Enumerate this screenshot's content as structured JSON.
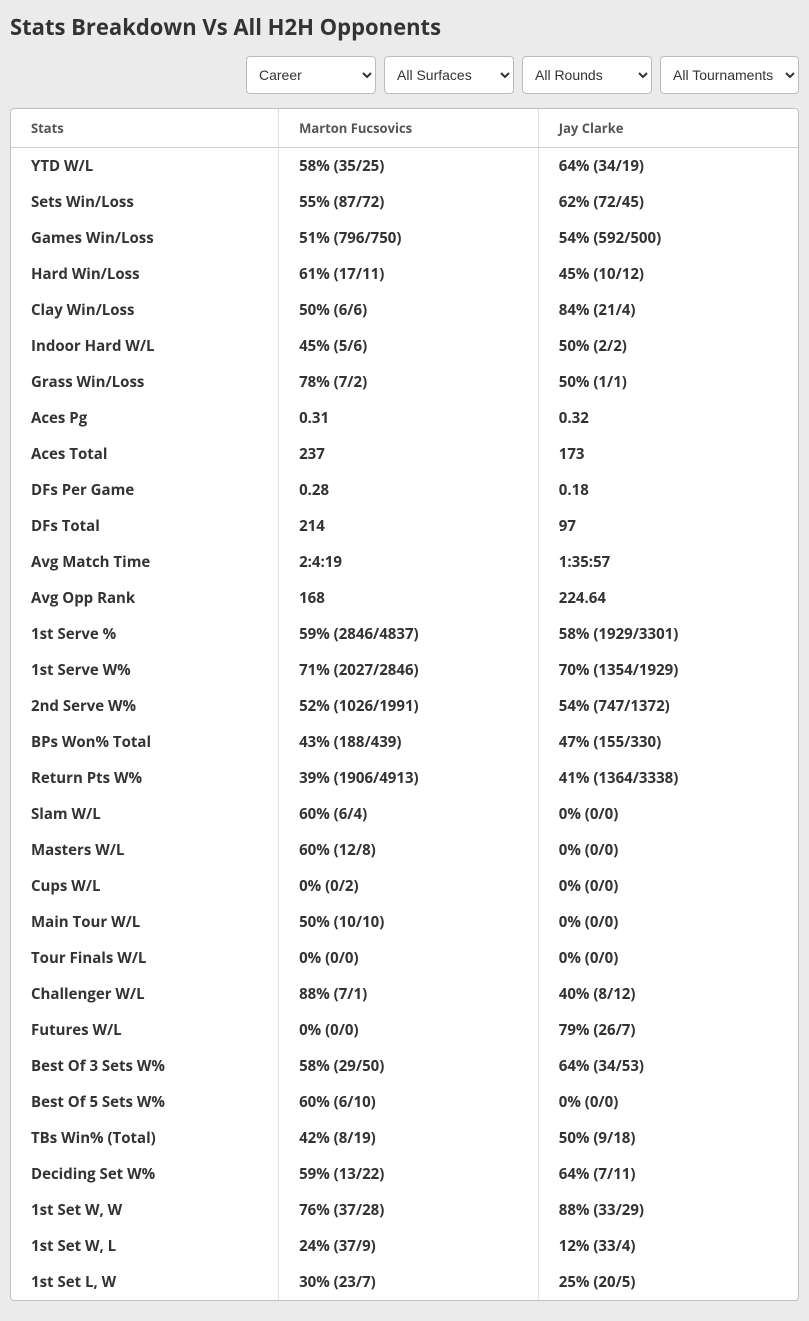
{
  "title": "Stats Breakdown Vs All H2H Opponents",
  "filters": {
    "period": {
      "selected": "Career",
      "options": [
        "Career"
      ]
    },
    "surface": {
      "selected": "All Surfaces",
      "options": [
        "All Surfaces"
      ]
    },
    "round": {
      "selected": "All Rounds",
      "options": [
        "All Rounds"
      ]
    },
    "tour": {
      "selected": "All Tournaments",
      "options": [
        "All Tournaments"
      ]
    }
  },
  "columns": {
    "stat": "Stats",
    "p1": "Marton Fucsovics",
    "p2": "Jay Clarke"
  },
  "rows": [
    {
      "stat": "YTD W/L",
      "p1": "58% (35/25)",
      "p2": "64% (34/19)"
    },
    {
      "stat": "Sets Win/Loss",
      "p1": "55% (87/72)",
      "p2": "62% (72/45)"
    },
    {
      "stat": "Games Win/Loss",
      "p1": "51% (796/750)",
      "p2": "54% (592/500)"
    },
    {
      "stat": "Hard Win/Loss",
      "p1": "61% (17/11)",
      "p2": "45% (10/12)"
    },
    {
      "stat": "Clay Win/Loss",
      "p1": "50% (6/6)",
      "p2": "84% (21/4)"
    },
    {
      "stat": "Indoor Hard W/L",
      "p1": "45% (5/6)",
      "p2": "50% (2/2)"
    },
    {
      "stat": "Grass Win/Loss",
      "p1": "78% (7/2)",
      "p2": "50% (1/1)"
    },
    {
      "stat": "Aces Pg",
      "p1": "0.31",
      "p2": "0.32"
    },
    {
      "stat": "Aces Total",
      "p1": "237",
      "p2": "173"
    },
    {
      "stat": "DFs Per Game",
      "p1": "0.28",
      "p2": "0.18"
    },
    {
      "stat": "DFs Total",
      "p1": "214",
      "p2": "97"
    },
    {
      "stat": "Avg Match Time",
      "p1": "2:4:19",
      "p2": "1:35:57"
    },
    {
      "stat": "Avg Opp Rank",
      "p1": "168",
      "p2": "224.64"
    },
    {
      "stat": "1st Serve %",
      "p1": "59% (2846/4837)",
      "p2": "58% (1929/3301)"
    },
    {
      "stat": "1st Serve W%",
      "p1": "71% (2027/2846)",
      "p2": "70% (1354/1929)"
    },
    {
      "stat": "2nd Serve W%",
      "p1": "52% (1026/1991)",
      "p2": "54% (747/1372)"
    },
    {
      "stat": "BPs Won% Total",
      "p1": "43% (188/439)",
      "p2": "47% (155/330)"
    },
    {
      "stat": "Return Pts W%",
      "p1": "39% (1906/4913)",
      "p2": "41% (1364/3338)"
    },
    {
      "stat": "Slam W/L",
      "p1": "60% (6/4)",
      "p2": "0% (0/0)"
    },
    {
      "stat": "Masters W/L",
      "p1": "60% (12/8)",
      "p2": "0% (0/0)"
    },
    {
      "stat": "Cups W/L",
      "p1": "0% (0/2)",
      "p2": "0% (0/0)"
    },
    {
      "stat": "Main Tour W/L",
      "p1": "50% (10/10)",
      "p2": "0% (0/0)"
    },
    {
      "stat": "Tour Finals W/L",
      "p1": "0% (0/0)",
      "p2": "0% (0/0)"
    },
    {
      "stat": "Challenger W/L",
      "p1": "88% (7/1)",
      "p2": "40% (8/12)"
    },
    {
      "stat": "Futures W/L",
      "p1": "0% (0/0)",
      "p2": "79% (26/7)"
    },
    {
      "stat": "Best Of 3 Sets W%",
      "p1": "58% (29/50)",
      "p2": "64% (34/53)"
    },
    {
      "stat": "Best Of 5 Sets W%",
      "p1": "60% (6/10)",
      "p2": "0% (0/0)"
    },
    {
      "stat": "TBs Win% (Total)",
      "p1": "42% (8/19)",
      "p2": "50% (9/18)"
    },
    {
      "stat": "Deciding Set W%",
      "p1": "59% (13/22)",
      "p2": "64% (7/11)"
    },
    {
      "stat": "1st Set W, W",
      "p1": "76% (37/28)",
      "p2": "88% (33/29)"
    },
    {
      "stat": "1st Set W, L",
      "p1": "24% (37/9)",
      "p2": "12% (33/4)"
    },
    {
      "stat": "1st Set L, W",
      "p1": "30% (23/7)",
      "p2": "25% (20/5)"
    }
  ],
  "colors": {
    "page_bg": "#ebebeb",
    "panel_bg": "#ffffff",
    "border": "#bfbfbf",
    "col_sep": "#e0e0e0",
    "text": "#333333",
    "header_text": "#555555"
  }
}
